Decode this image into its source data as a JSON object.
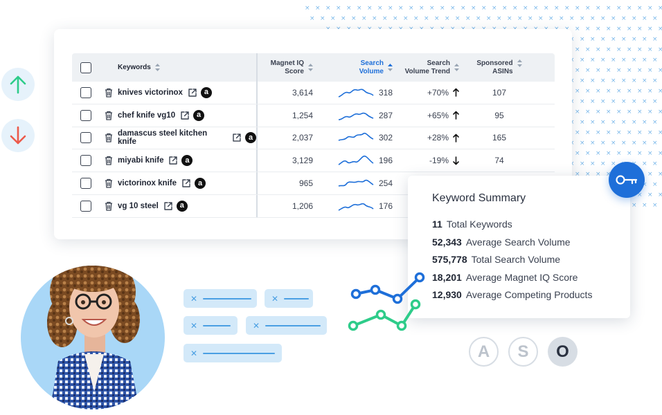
{
  "table": {
    "headers": {
      "keywords": "Keywords",
      "magnet_line1": "Magnet IQ",
      "magnet_line2": "Score",
      "search_line1": "Search",
      "search_line2": "Volume",
      "trend_line1": "Search",
      "trend_line2": "Volume Trend",
      "sponsored_line1": "Sponsored",
      "sponsored_line2": "ASINs"
    },
    "rows": [
      {
        "keyword": "knives victorinox",
        "magnet": "3,614",
        "volume": "318",
        "trend": "+70%",
        "dir": "up",
        "asins": "107"
      },
      {
        "keyword": "chef knife vg10",
        "magnet": "1,254",
        "volume": "287",
        "trend": "+65%",
        "dir": "up",
        "asins": "95"
      },
      {
        "keyword": "damascus steel kitchen knife",
        "magnet": "2,037",
        "volume": "302",
        "trend": "+28%",
        "dir": "up",
        "asins": "165"
      },
      {
        "keyword": "miyabi knife",
        "magnet": "3,129",
        "volume": "196",
        "trend": "-19%",
        "dir": "down",
        "asins": "74"
      },
      {
        "keyword": "victorinox knife",
        "magnet": "965",
        "volume": "254",
        "trend": "",
        "dir": "",
        "asins": ""
      },
      {
        "keyword": "vg 10 steel",
        "magnet": "1,206",
        "volume": "176",
        "trend": "",
        "dir": "",
        "asins": ""
      }
    ],
    "amazon_glyph": "a"
  },
  "summary": {
    "title": "Keyword Summary",
    "items": [
      {
        "value": "11",
        "label": "Total Keywords"
      },
      {
        "value": "52,343",
        "label": "Average Search Volume"
      },
      {
        "value": "575,778",
        "label": "Total Search Volume"
      },
      {
        "value": "18,201",
        "label": "Average Magnet IQ Score"
      },
      {
        "value": "12,930",
        "label": "Average Competing Products"
      }
    ]
  },
  "aso": [
    "A",
    "S",
    "O"
  ],
  "icons": {
    "up_arrow": "arrow-up-icon",
    "down_arrow": "arrow-down-icon",
    "key": "key-icon",
    "trash": "trash-icon",
    "external": "external-link-icon",
    "amazon": "amazon-icon"
  },
  "colors": {
    "accent_blue": "#1e6fd9",
    "green": "#2ecc8a",
    "red": "#ec5a4b",
    "light_blue": "#d3e9f9"
  }
}
